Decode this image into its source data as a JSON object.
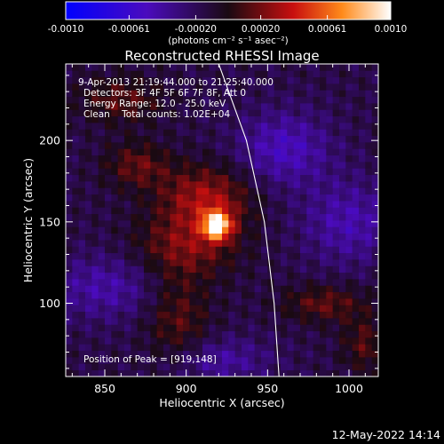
{
  "chart_data": {
    "type": "heatmap",
    "title": "Reconstructed RHESSI Image",
    "xlabel": "Heliocentric X (arcsec)",
    "ylabel": "Heliocentric Y (arcsec)",
    "xlim": [
      826,
      1018
    ],
    "ylim": [
      55,
      247
    ],
    "x_ticks": [
      850,
      900,
      950,
      1000
    ],
    "y_ticks": [
      100,
      150,
      200
    ],
    "colorbar": {
      "range": [
        -0.001,
        0.001
      ],
      "tick_labels": [
        "-0.0010",
        "-0.00061",
        "-0.00020",
        "0.00020",
        "0.00061",
        "0.0010"
      ],
      "units_label": "(photons cm⁻² s⁻¹ asec⁻²)"
    },
    "annotations": [
      "9-Apr-2013 21:19:44.000 to 21:25:40.000",
      "Detectors: 3F 4F 5F 6F 7F 8F, Att 0",
      "Energy Range: 12.0 - 25.0 keV",
      "Clean    Total counts: 1.02E+04"
    ],
    "peak_label": "Position of Peak = [919,148]",
    "peak": {
      "x": 919,
      "y": 148,
      "value": 0.001
    },
    "limb_curve": [
      [
        920,
        247
      ],
      [
        937,
        200
      ],
      [
        948,
        150
      ],
      [
        954,
        100
      ],
      [
        957,
        55
      ]
    ],
    "emission_regions": [
      {
        "x": 919,
        "y": 148,
        "sx": 6,
        "sy": 6,
        "amp": 0.001
      },
      {
        "x": 912,
        "y": 165,
        "sx": 20,
        "sy": 14,
        "amp": 0.00045
      },
      {
        "x": 900,
        "y": 135,
        "sx": 22,
        "sy": 14,
        "amp": 0.00035
      },
      {
        "x": 870,
        "y": 185,
        "sx": 14,
        "sy": 10,
        "amp": 0.0003
      },
      {
        "x": 860,
        "y": 225,
        "sx": 18,
        "sy": 10,
        "amp": 0.00028
      },
      {
        "x": 895,
        "y": 90,
        "sx": 14,
        "sy": 20,
        "amp": 0.00028
      },
      {
        "x": 985,
        "y": 100,
        "sx": 18,
        "sy": 8,
        "amp": 0.0003
      },
      {
        "x": 1010,
        "y": 75,
        "sx": 10,
        "sy": 12,
        "amp": 0.00026
      },
      {
        "x": 960,
        "y": 195,
        "sx": 20,
        "sy": 16,
        "amp": -0.00035
      },
      {
        "x": 1000,
        "y": 150,
        "sx": 20,
        "sy": 18,
        "amp": -0.0003
      },
      {
        "x": 850,
        "y": 110,
        "sx": 24,
        "sy": 14,
        "amp": -0.00028
      },
      {
        "x": 920,
        "y": 65,
        "sx": 22,
        "sy": 10,
        "amp": -0.00026
      }
    ],
    "grid": false
  },
  "footer": {
    "timestamp": "12-May-2022 14:14"
  }
}
